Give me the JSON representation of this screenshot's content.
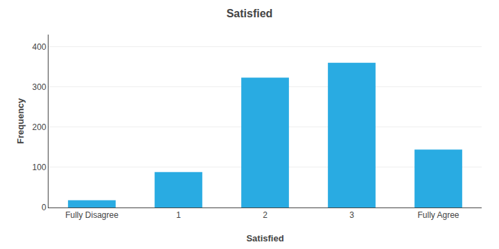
{
  "chart_data": {
    "type": "bar",
    "title": "Satisfied",
    "xlabel": "Satisfied",
    "ylabel": "Frequency",
    "categories": [
      "Fully Disagree",
      "1",
      "2",
      "3",
      "Fully Agree"
    ],
    "values": [
      18,
      88,
      323,
      360,
      144
    ],
    "color": "#29ABE2",
    "ylim": [
      0,
      430
    ],
    "yticks": [
      0,
      100,
      200,
      300,
      400
    ],
    "grid": true
  }
}
